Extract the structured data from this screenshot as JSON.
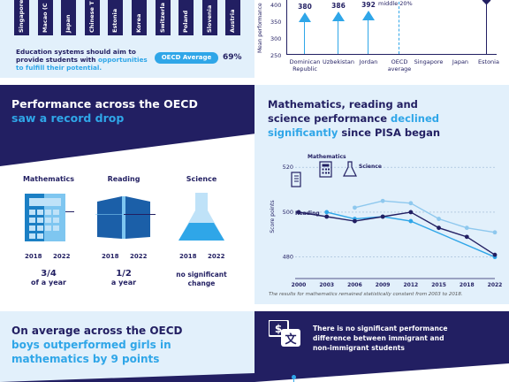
{
  "tl": {
    "countries": [
      "Singapore",
      "Macao (C",
      "Japan",
      "Chinese T",
      "Estonia",
      "Korea",
      "Switzerla",
      "Poland",
      "Slovenia",
      "Austria"
    ],
    "aim1": "Education systems should aim to",
    "aim2a": "provide students with ",
    "aim2b": "opportunities",
    "aim3": "to fulfill their potential.",
    "oecd_label": "OECD Average",
    "oecd_value": "69%"
  },
  "tr": {
    "yaxis": "Mean performance",
    "ticks": [
      "400",
      "350",
      "300",
      "250"
    ],
    "bars": [
      {
        "label": "Dominican Republic",
        "value": "380"
      },
      {
        "label": "Uzbekistan",
        "value": "386"
      },
      {
        "label": "Jordan",
        "value": "392"
      },
      {
        "label": "OECD average",
        "value": ""
      },
      {
        "label": "Singapore",
        "value": ""
      },
      {
        "label": "Japan",
        "value": ""
      },
      {
        "label": "Estonia",
        "value": ""
      }
    ],
    "middle": "middle 20%"
  },
  "ml": {
    "title1": "Performance across the OECD",
    "title2": "saw a record drop",
    "subjects": [
      {
        "name": "Mathematics",
        "y1": "2018",
        "y2": "2022",
        "value": "3/4",
        "unit": "of a year"
      },
      {
        "name": "Reading",
        "y1": "2018",
        "y2": "2022",
        "value": "1/2",
        "unit": "a year"
      },
      {
        "name": "Science",
        "y1": "2018",
        "y2": "2022",
        "value": "no significant",
        "unit": "change"
      }
    ]
  },
  "mr": {
    "title1": "Mathematics, reading and",
    "title2a": "science performance ",
    "title2b": "declined",
    "title3a": "significantly",
    "title3b": " since PISA began",
    "ylabel": "Score points",
    "footnote": "The results for mathematics remained statistically constant from 2003 to 2018.",
    "legend": {
      "math": "Mathematics",
      "science": "Science",
      "reading": "Reading"
    },
    "colors": {
      "math": "#2fa6e8",
      "reading": "#221f62",
      "science": "#8ec8ee"
    }
  },
  "chart_data": {
    "type": "line",
    "x": [
      "2000",
      "2003",
      "2006",
      "2009",
      "2012",
      "2015",
      "2018",
      "2022"
    ],
    "yticks": [
      "520",
      "500",
      "480"
    ],
    "ylim": [
      472,
      524
    ],
    "series": [
      {
        "name": "Mathematics",
        "values": [
          null,
          500,
          497,
          498,
          496,
          null,
          null,
          480
        ]
      },
      {
        "name": "Reading",
        "values": [
          500,
          498,
          496,
          498,
          500,
          493,
          489,
          481
        ]
      },
      {
        "name": "Science",
        "values": [
          null,
          null,
          502,
          505,
          504,
          497,
          493,
          491
        ]
      }
    ]
  },
  "bl": {
    "t1": "On average across the OECD",
    "t2": "boys outperformed girls in",
    "t3": "mathematics by 9 points"
  },
  "br": {
    "t1": "There is no significant performance",
    "t2": "difference between immigrant and",
    "t3": "non-immigrant students"
  }
}
